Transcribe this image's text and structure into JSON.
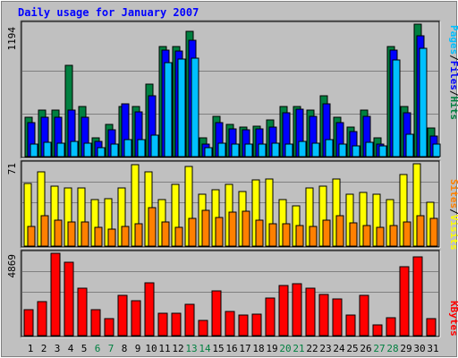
{
  "chart_data": {
    "type": "bar",
    "title": "Daily usage for January 2007",
    "categories": [
      "1",
      "2",
      "3",
      "4",
      "5",
      "6",
      "7",
      "8",
      "9",
      "10",
      "11",
      "12",
      "13",
      "14",
      "15",
      "16",
      "17",
      "18",
      "19",
      "20",
      "21",
      "22",
      "23",
      "24",
      "25",
      "26",
      "27",
      "28",
      "29",
      "30",
      "31"
    ],
    "weekend_categories": [
      "6",
      "7",
      "13",
      "14",
      "20",
      "21",
      "27",
      "28"
    ],
    "panels": {
      "top": {
        "max_label": "1194",
        "ylim": [
          0,
          1194
        ],
        "legend": [
          "Pages",
          "/",
          "Files",
          "/",
          "Hits"
        ],
        "series": [
          {
            "name": "Hits",
            "values": [
              353,
              420,
              420,
              825,
              454,
              170,
              294,
              454,
              454,
              652,
              991,
              991,
              1132,
              170,
              363,
              293,
              269,
              273,
              329,
              454,
              454,
              420,
              545,
              353,
              269,
              420,
              170,
              991,
              454,
              1194,
              257
            ]
          },
          {
            "name": "Files",
            "values": [
              305,
              353,
              353,
              420,
              353,
              140,
              241,
              473,
              405,
              545,
              962,
              953,
              1048,
              113,
              308,
              247,
              241,
              247,
              264,
              395,
              425,
              365,
              473,
              305,
              225,
              361,
              113,
              962,
              394,
              1090,
              189
            ]
          },
          {
            "name": "Pages",
            "values": [
              110,
              130,
              120,
              140,
              120,
              80,
              110,
              150,
              150,
              190,
              850,
              880,
              890,
              80,
              120,
              110,
              110,
              110,
              120,
              110,
              140,
              120,
              150,
              110,
              100,
              130,
              100,
              872,
              200,
              974,
              110
            ]
          }
        ]
      },
      "middle": {
        "max_label": "71",
        "ylim": [
          0,
          71
        ],
        "legend": [
          "Sites",
          "/",
          "Visits"
        ],
        "series": [
          {
            "name": "Visits",
            "values": [
              54,
              64,
              52,
              50,
              50,
              40,
              41,
              50,
              70,
              64,
              40,
              53,
              69,
              45,
              49,
              53,
              47,
              57,
              58,
              40,
              35,
              50,
              52,
              58,
              45,
              46,
              45,
              40,
              62,
              71,
              38
            ]
          },
          {
            "name": "Sites",
            "values": [
              17,
              26,
              22,
              21,
              21,
              16,
              15,
              17,
              19,
              33,
              21,
              16,
              24,
              31,
              25,
              29,
              30,
              22,
              19,
              19,
              18,
              17,
              22,
              26,
              20,
              18,
              16,
              18,
              21,
              26,
              24
            ]
          }
        ]
      },
      "bottom": {
        "max_label": "4869",
        "ylim": [
          0,
          4869
        ],
        "legend": [
          "KBytes"
        ],
        "series": [
          {
            "name": "KBytes",
            "values": [
              1550,
              2003,
              4869,
              4314,
              2814,
              1550,
              987,
              2393,
              2052,
              3123,
              1311,
              1334,
              1839,
              908,
              2668,
              1431,
              1220,
              1260,
              2240,
              2955,
              3072,
              2826,
              2413,
              2170,
              1239,
              2392,
              649,
              1055,
              4084,
              4633,
              1030
            ]
          }
        ]
      }
    }
  },
  "colors": {
    "background": "#c0c0c0",
    "frame": "#d4d4d4",
    "hits": "#008040",
    "files": "#0000ff",
    "pages": "#00c0ff",
    "visits": "#ffff00",
    "sites": "#ff8000",
    "kbytes": "#ff0000",
    "title": "#0000ff",
    "weekend_label": "#008040",
    "gridline": "#808080"
  }
}
